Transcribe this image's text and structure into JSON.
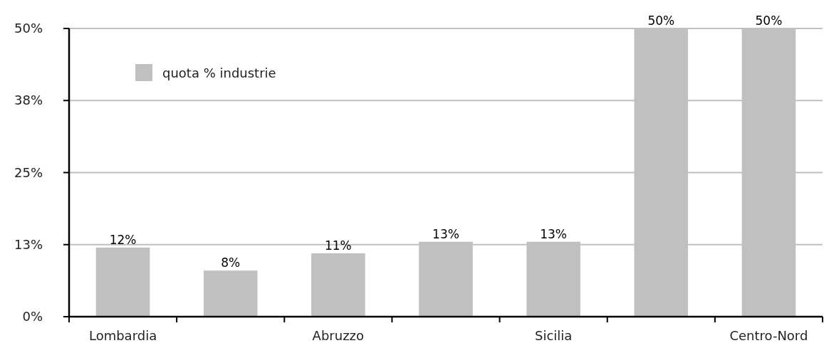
{
  "chart_data": {
    "type": "bar",
    "categories": [
      "Lombardia",
      null,
      "Abruzzo",
      null,
      "Sicilia",
      null,
      "Centro-Nord"
    ],
    "series": [
      {
        "name": "quota % industrie",
        "color": "#c0c0c0",
        "values": [
          12,
          8,
          11,
          13,
          13,
          50,
          50
        ],
        "value_labels": [
          "12%",
          "8%",
          "11%",
          "13%",
          "13%",
          "50%",
          "50%"
        ]
      }
    ],
    "ylim": [
      0,
      50
    ],
    "yticks": [
      {
        "value": 0,
        "label": "0%"
      },
      {
        "value": 12.5,
        "label": "13%"
      },
      {
        "value": 25,
        "label": "25%"
      },
      {
        "value": 37.5,
        "label": "38%"
      },
      {
        "value": 50,
        "label": "50%"
      }
    ],
    "grid": "y",
    "legend": "top left"
  }
}
